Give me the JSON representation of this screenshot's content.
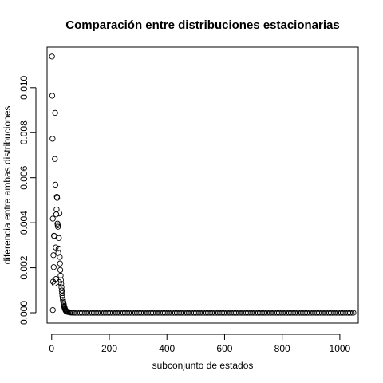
{
  "chart_data": {
    "type": "scatter",
    "title": "Comparación entre distribuciones estacionarias",
    "xlabel": "subconjunto de estados",
    "ylabel": "diferencia entre ambas distribuciones",
    "xlim": [
      -16,
      1064
    ],
    "ylim": [
      -0.00046,
      0.0118
    ],
    "xticks": [
      0,
      200,
      400,
      600,
      800,
      1000
    ],
    "yticks": [
      0.0,
      0.002,
      0.004,
      0.006,
      0.008,
      0.01
    ],
    "xtick_labels": [
      "0",
      "200",
      "400",
      "600",
      "800",
      "1000"
    ],
    "ytick_labels": [
      "0.000",
      "0.002",
      "0.004",
      "0.006",
      "0.008",
      "0.010"
    ],
    "grid": false,
    "marker": "open-circle",
    "series": [
      {
        "points": [
          [
            1,
            0.01138
          ],
          [
            2,
            0.00964
          ],
          [
            3,
            0.00773
          ],
          [
            4,
            0.00418
          ],
          [
            5,
            0.00138
          ],
          [
            6,
            0.00256
          ],
          [
            7,
            0.00203
          ],
          [
            8,
            0.00342
          ],
          [
            9,
            0.00341
          ],
          [
            10,
            0.0013
          ],
          [
            11,
            0.00683
          ],
          [
            12,
            0.00888
          ],
          [
            13,
            0.00569
          ],
          [
            14,
            0.0029
          ],
          [
            15,
            0.0015
          ],
          [
            16,
            0.00437
          ],
          [
            17,
            0.00459
          ],
          [
            18,
            0.00515
          ],
          [
            19,
            0.0051
          ],
          [
            20,
            0.00396
          ],
          [
            21,
            0.00389
          ],
          [
            22,
            0.00382
          ],
          [
            23,
            0.00266
          ],
          [
            24,
            0.00285
          ],
          [
            25,
            0.00332
          ],
          [
            26,
            0.00136
          ],
          [
            27,
            0.00441
          ],
          [
            28,
            0.00248
          ],
          [
            29,
            0.00219
          ],
          [
            30,
            0.0019
          ],
          [
            31,
            0.00165
          ],
          [
            32,
            0.00145
          ],
          [
            33,
            0.00128
          ],
          [
            34,
            0.00113
          ],
          [
            35,
            0.00099
          ],
          [
            36,
            0.00087
          ],
          [
            37,
            0.00076
          ],
          [
            38,
            0.00066
          ],
          [
            39,
            0.00057
          ],
          [
            40,
            0.00049
          ],
          [
            41,
            0.00042
          ],
          [
            42,
            0.00036
          ],
          [
            43,
            0.0003
          ],
          [
            44,
            0.00025
          ],
          [
            45,
            0.00021
          ],
          [
            46,
            0.00017
          ],
          [
            47,
            0.00014
          ],
          [
            48,
            0.00011
          ],
          [
            49,
            9e-05
          ],
          [
            50,
            7e-05
          ],
          [
            52,
            5e-05
          ],
          [
            55,
            4e-05
          ],
          [
            58,
            3e-05
          ],
          [
            62,
            2e-05
          ],
          [
            66,
            1e-05
          ],
          [
            70,
            5e-06
          ],
          [
            4,
            0.00012
          ]
        ],
        "tail": {
          "x_start": 75,
          "x_end": 1048,
          "x_step": 6,
          "y": 0.0
        }
      }
    ]
  }
}
